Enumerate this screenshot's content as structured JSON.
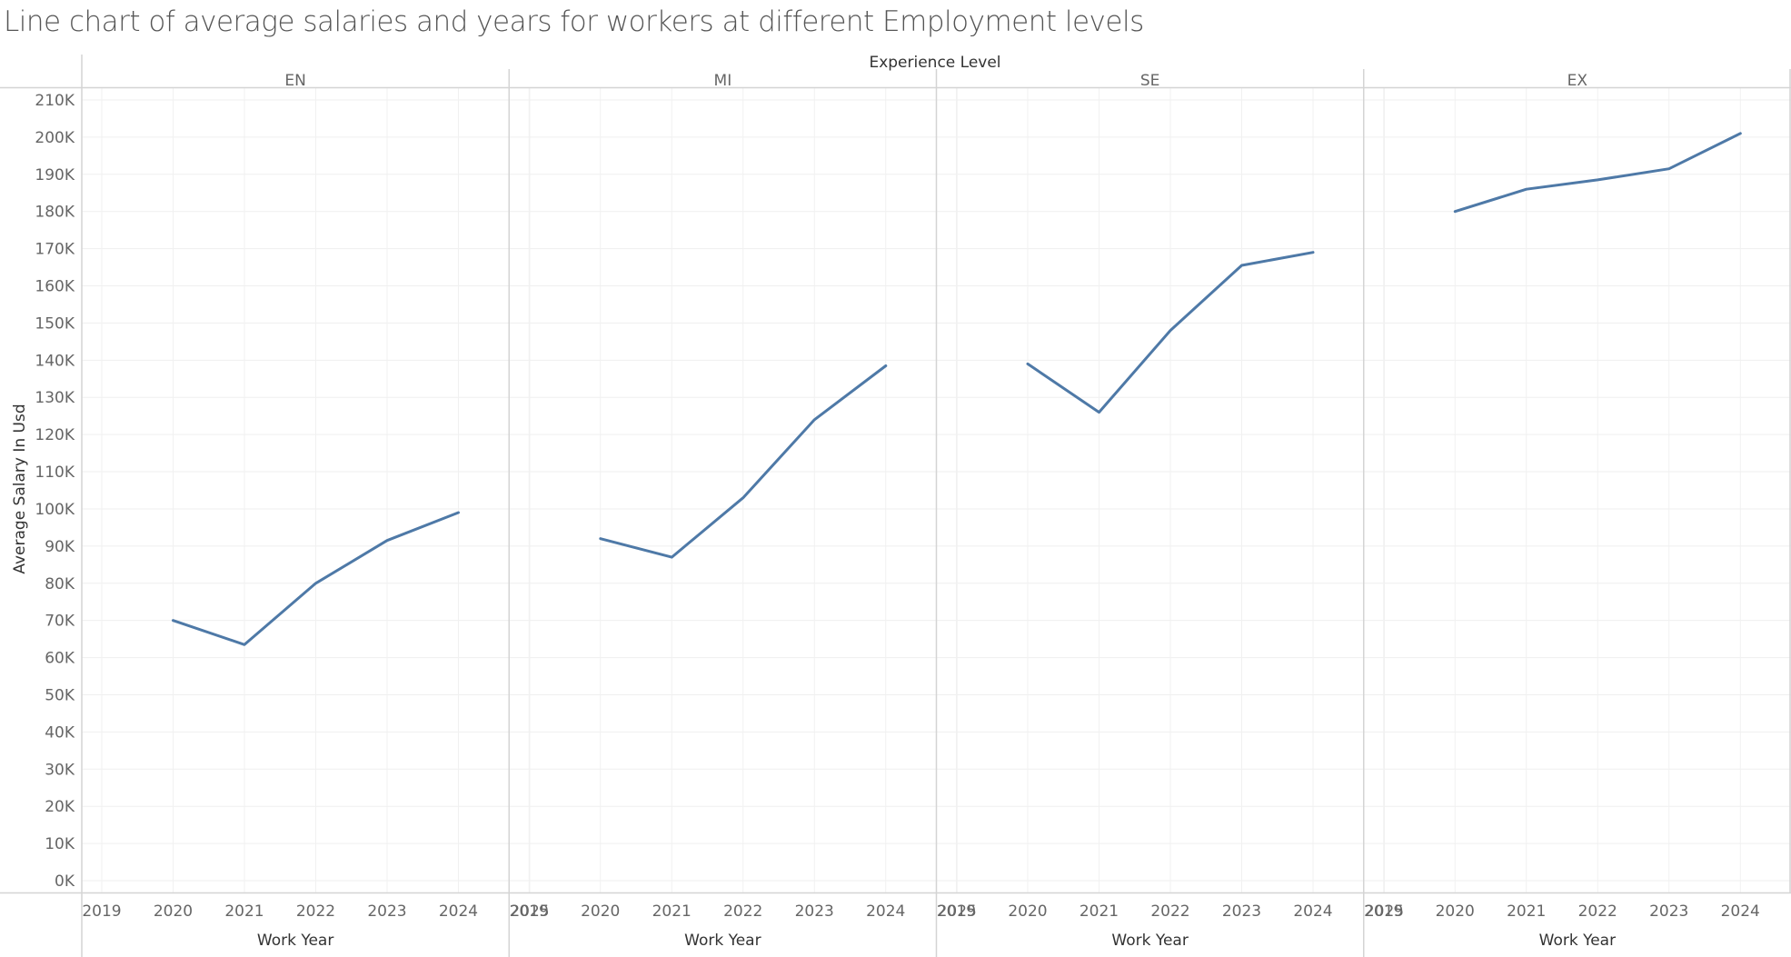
{
  "title": "Line chart of average salaries and years for workers at different Employment levels",
  "chart_data": {
    "type": "line",
    "title": "Line chart of average salaries and years for workers at different Employment levels",
    "facet_label": "Experience Level",
    "xlabel": "Work Year",
    "ylabel": "Average Salary In Usd",
    "x_ticks": [
      "2019",
      "2020",
      "2021",
      "2022",
      "2023",
      "2024",
      "2025"
    ],
    "xlim": [
      2019,
      2025
    ],
    "y_ticks": [
      "0K",
      "10K",
      "20K",
      "30K",
      "40K",
      "50K",
      "60K",
      "70K",
      "80K",
      "90K",
      "100K",
      "110K",
      "120K",
      "130K",
      "140K",
      "150K",
      "160K",
      "170K",
      "180K",
      "190K",
      "200K",
      "210K"
    ],
    "ylim": [
      0,
      210000
    ],
    "grid": true,
    "line_color": "#4e79a7",
    "panels": [
      {
        "name": "EN",
        "x": [
          2020,
          2021,
          2022,
          2023,
          2024
        ],
        "values": [
          70000,
          63500,
          80000,
          91500,
          99000
        ]
      },
      {
        "name": "MI",
        "x": [
          2020,
          2021,
          2022,
          2023,
          2024
        ],
        "values": [
          92000,
          87000,
          103000,
          124000,
          138500
        ]
      },
      {
        "name": "SE",
        "x": [
          2020,
          2021,
          2022,
          2023,
          2024
        ],
        "values": [
          139000,
          126000,
          148000,
          165500,
          169000
        ]
      },
      {
        "name": "EX",
        "x": [
          2020,
          2021,
          2022,
          2023,
          2024
        ],
        "values": [
          180000,
          186000,
          188500,
          191500,
          201000
        ]
      }
    ]
  }
}
